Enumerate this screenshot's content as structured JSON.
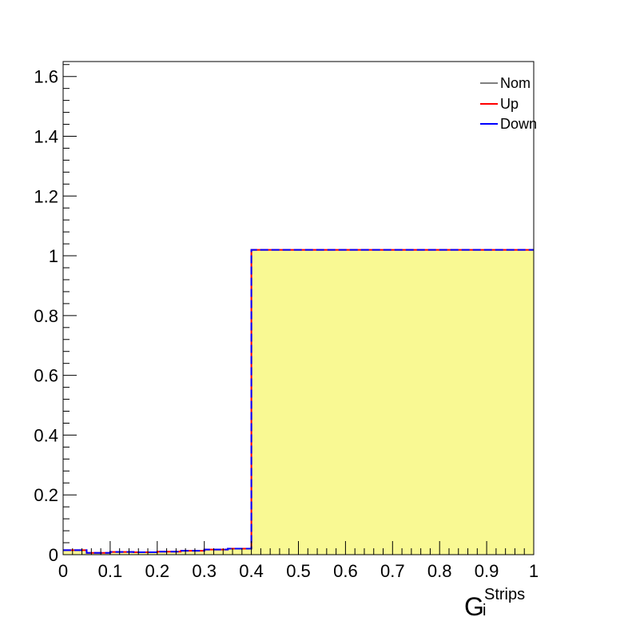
{
  "chart_data": {
    "type": "histogram",
    "title": "",
    "xlabel": "G",
    "xlabel_superscript": "Strips",
    "xlabel_subscript": "i",
    "ylabel": "",
    "xlim": [
      0,
      1
    ],
    "ylim": [
      0,
      1.65
    ],
    "x_ticks": [
      "0",
      "0.1",
      "0.2",
      "0.3",
      "0.4",
      "0.5",
      "0.6",
      "0.7",
      "0.8",
      "0.9",
      "1"
    ],
    "y_ticks": [
      "0",
      "0.2",
      "0.4",
      "0.6",
      "0.8",
      "1",
      "1.2",
      "1.4",
      "1.6"
    ],
    "bin_edges": [
      0,
      0.05,
      0.1,
      0.15,
      0.2,
      0.25,
      0.3,
      0.35,
      0.4,
      1.0
    ],
    "bin_values": [
      0.015,
      0.006,
      0.009,
      0.008,
      0.01,
      0.013,
      0.017,
      0.02,
      1.02
    ],
    "fill_color": "#f9f993",
    "legend_position": "top-right",
    "series": [
      {
        "name": "Nom",
        "color": "#000000",
        "style": "solid"
      },
      {
        "name": "Up",
        "color": "#ff0000",
        "style": "solid"
      },
      {
        "name": "Down",
        "color": "#0000ff",
        "style": "dashed"
      }
    ]
  }
}
